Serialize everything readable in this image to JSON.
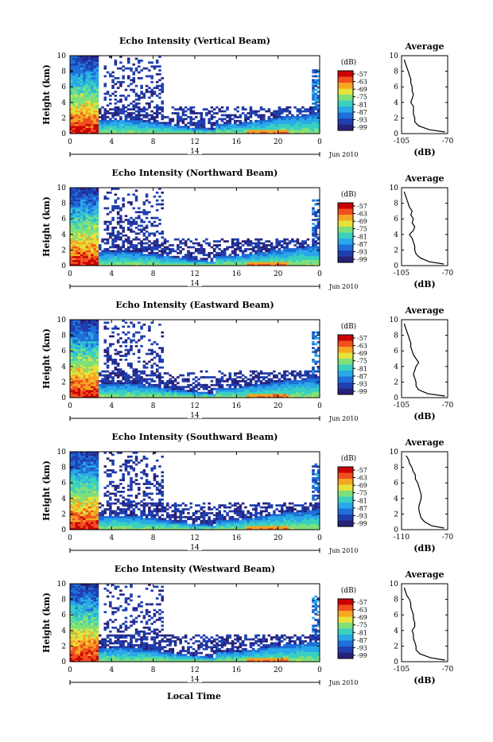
{
  "figure": {
    "bottom_xlabel": "Local Time",
    "date_label": "Jun 2010",
    "day_label": "14",
    "colorbar_unit": "(dB)",
    "colorbar_ticks": [
      "-57",
      "-63",
      "-69",
      "-75",
      "-81",
      "-87",
      "-93",
      "-99"
    ],
    "colors": {
      "background": "#ffffff",
      "axis": "#000000",
      "colormap": [
        "#27217a",
        "#1f3fb0",
        "#1e6fd8",
        "#2aa8e8",
        "#39d0c0",
        "#7ee07a",
        "#e6e23a",
        "#f5a623",
        "#f0501e",
        "#cc0000"
      ]
    }
  },
  "chart_data": [
    {
      "type": "heatmap",
      "title": "Echo Intensity (Vertical Beam)",
      "ylabel": "Height (km)",
      "xticks": [
        "0",
        "4",
        "8",
        "12",
        "16",
        "20",
        "0"
      ],
      "yticks": [
        "0",
        "2",
        "4",
        "6",
        "8",
        "10"
      ],
      "xlim": [
        0,
        24
      ],
      "ylim": [
        0,
        10
      ],
      "colorbar": {
        "label": "(dB)",
        "range": [
          -99,
          -57
        ]
      },
      "profile": {
        "title": "Average",
        "xlabel": "(dB)",
        "xticks": [
          "-105",
          "-70"
        ],
        "xlim": [
          -105,
          -70
        ],
        "yticks": [
          "0",
          "2",
          "4",
          "6",
          "8",
          "10"
        ],
        "heights": [
          0.2,
          0.5,
          1,
          1.5,
          2,
          2.5,
          3,
          3.5,
          4,
          4.5,
          5,
          5.5,
          6,
          6.5,
          7,
          7.5,
          8,
          8.5,
          9,
          9.5
        ],
        "values": [
          -72,
          -84,
          -92,
          -95,
          -95,
          -96,
          -96,
          -96,
          -98,
          -97,
          -96,
          -97,
          -97,
          -98,
          -98,
          -99,
          -100,
          -101,
          -102,
          -103
        ]
      }
    },
    {
      "type": "heatmap",
      "title": "Echo Intensity (Northward Beam)",
      "ylabel": "Height (km)",
      "xticks": [
        "0",
        "4",
        "8",
        "12",
        "16",
        "20",
        "0"
      ],
      "yticks": [
        "0",
        "2",
        "4",
        "6",
        "8",
        "10"
      ],
      "xlim": [
        0,
        24
      ],
      "ylim": [
        0,
        10
      ],
      "colorbar": {
        "label": "(dB)",
        "range": [
          -99,
          -57
        ]
      },
      "profile": {
        "title": "Average",
        "xlabel": "(dB)",
        "xticks": [
          "-105",
          "-70"
        ],
        "xlim": [
          -105,
          -70
        ],
        "yticks": [
          "0",
          "2",
          "4",
          "6",
          "8",
          "10"
        ],
        "heights": [
          0.2,
          0.5,
          1,
          1.5,
          2,
          2.5,
          3,
          3.5,
          4,
          4.5,
          5,
          5.5,
          6,
          6.5,
          7,
          7.5,
          8,
          8.5,
          9,
          9.5
        ],
        "values": [
          -73,
          -84,
          -91,
          -94,
          -95,
          -95,
          -96,
          -97,
          -99,
          -96,
          -95,
          -97,
          -96,
          -98,
          -97,
          -99,
          -100,
          -101,
          -102,
          -103
        ]
      }
    },
    {
      "type": "heatmap",
      "title": "Echo Intensity (Eastward Beam)",
      "ylabel": "Height (km)",
      "xticks": [
        "0",
        "4",
        "8",
        "12",
        "16",
        "20",
        "0"
      ],
      "yticks": [
        "0",
        "2",
        "4",
        "6",
        "8",
        "10"
      ],
      "xlim": [
        0,
        24
      ],
      "ylim": [
        0,
        10
      ],
      "colorbar": {
        "label": "(dB)",
        "range": [
          -99,
          -57
        ]
      },
      "profile": {
        "title": "Average",
        "xlabel": "(dB)",
        "xticks": [
          "-105",
          "-70"
        ],
        "xlim": [
          -105,
          -70
        ],
        "yticks": [
          "0",
          "2",
          "4",
          "6",
          "8",
          "10"
        ],
        "heights": [
          0.2,
          0.5,
          1,
          1.5,
          2,
          2.5,
          3,
          3.5,
          4,
          4.5,
          5,
          5.5,
          6,
          6.5,
          7,
          7.5,
          8,
          8.5,
          9,
          9.5
        ],
        "values": [
          -72,
          -85,
          -92,
          -94,
          -94,
          -95,
          -96,
          -95,
          -94,
          -92,
          -94,
          -96,
          -97,
          -98,
          -98,
          -99,
          -100,
          -101,
          -102,
          -103
        ]
      }
    },
    {
      "type": "heatmap",
      "title": "Echo Intensity (Southward Beam)",
      "ylabel": "Height (km)",
      "xticks": [
        "0",
        "4",
        "8",
        "12",
        "16",
        "20",
        "0"
      ],
      "yticks": [
        "0",
        "2",
        "4",
        "6",
        "8",
        "10"
      ],
      "xlim": [
        0,
        24
      ],
      "ylim": [
        0,
        10
      ],
      "colorbar": {
        "label": "(dB)",
        "range": [
          -99,
          -57
        ]
      },
      "profile": {
        "title": "Average",
        "xlabel": "(dB)",
        "xticks": [
          "-110",
          "-70"
        ],
        "xlim": [
          -110,
          -70
        ],
        "yticks": [
          "0",
          "2",
          "4",
          "6",
          "8",
          "10"
        ],
        "heights": [
          0.2,
          0.5,
          1,
          1.5,
          2,
          2.5,
          3,
          3.5,
          4,
          4.5,
          5,
          5.5,
          6,
          6.5,
          7,
          7.5,
          8,
          8.5,
          9,
          9.5
        ],
        "values": [
          -73,
          -84,
          -90,
          -93,
          -94,
          -95,
          -95,
          -94,
          -93,
          -93,
          -94,
          -95,
          -96,
          -98,
          -98,
          -100,
          -101,
          -103,
          -104,
          -106
        ]
      }
    },
    {
      "type": "heatmap",
      "title": "Echo Intensity (Westward Beam)",
      "ylabel": "Height (km)",
      "xticks": [
        "0",
        "4",
        "8",
        "12",
        "16",
        "20",
        "0"
      ],
      "yticks": [
        "0",
        "2",
        "4",
        "6",
        "8",
        "10"
      ],
      "xlim": [
        0,
        24
      ],
      "ylim": [
        0,
        10
      ],
      "colorbar": {
        "label": "(dB)",
        "range": [
          -99,
          -57
        ]
      },
      "profile": {
        "title": "Average",
        "xlabel": "(dB)",
        "xticks": [
          "-105",
          "-70"
        ],
        "xlim": [
          -105,
          -70
        ],
        "yticks": [
          "0",
          "2",
          "4",
          "6",
          "8",
          "10"
        ],
        "heights": [
          0.2,
          0.5,
          1,
          1.5,
          2,
          2.5,
          3,
          3.5,
          4,
          4.5,
          5,
          5.5,
          6,
          6.5,
          7,
          7.5,
          8,
          8.5,
          9,
          9.5
        ],
        "values": [
          -72,
          -83,
          -91,
          -94,
          -94,
          -95,
          -96,
          -96,
          -97,
          -95,
          -95,
          -96,
          -96,
          -97,
          -98,
          -98,
          -99,
          -101,
          -102,
          -103
        ]
      }
    }
  ]
}
